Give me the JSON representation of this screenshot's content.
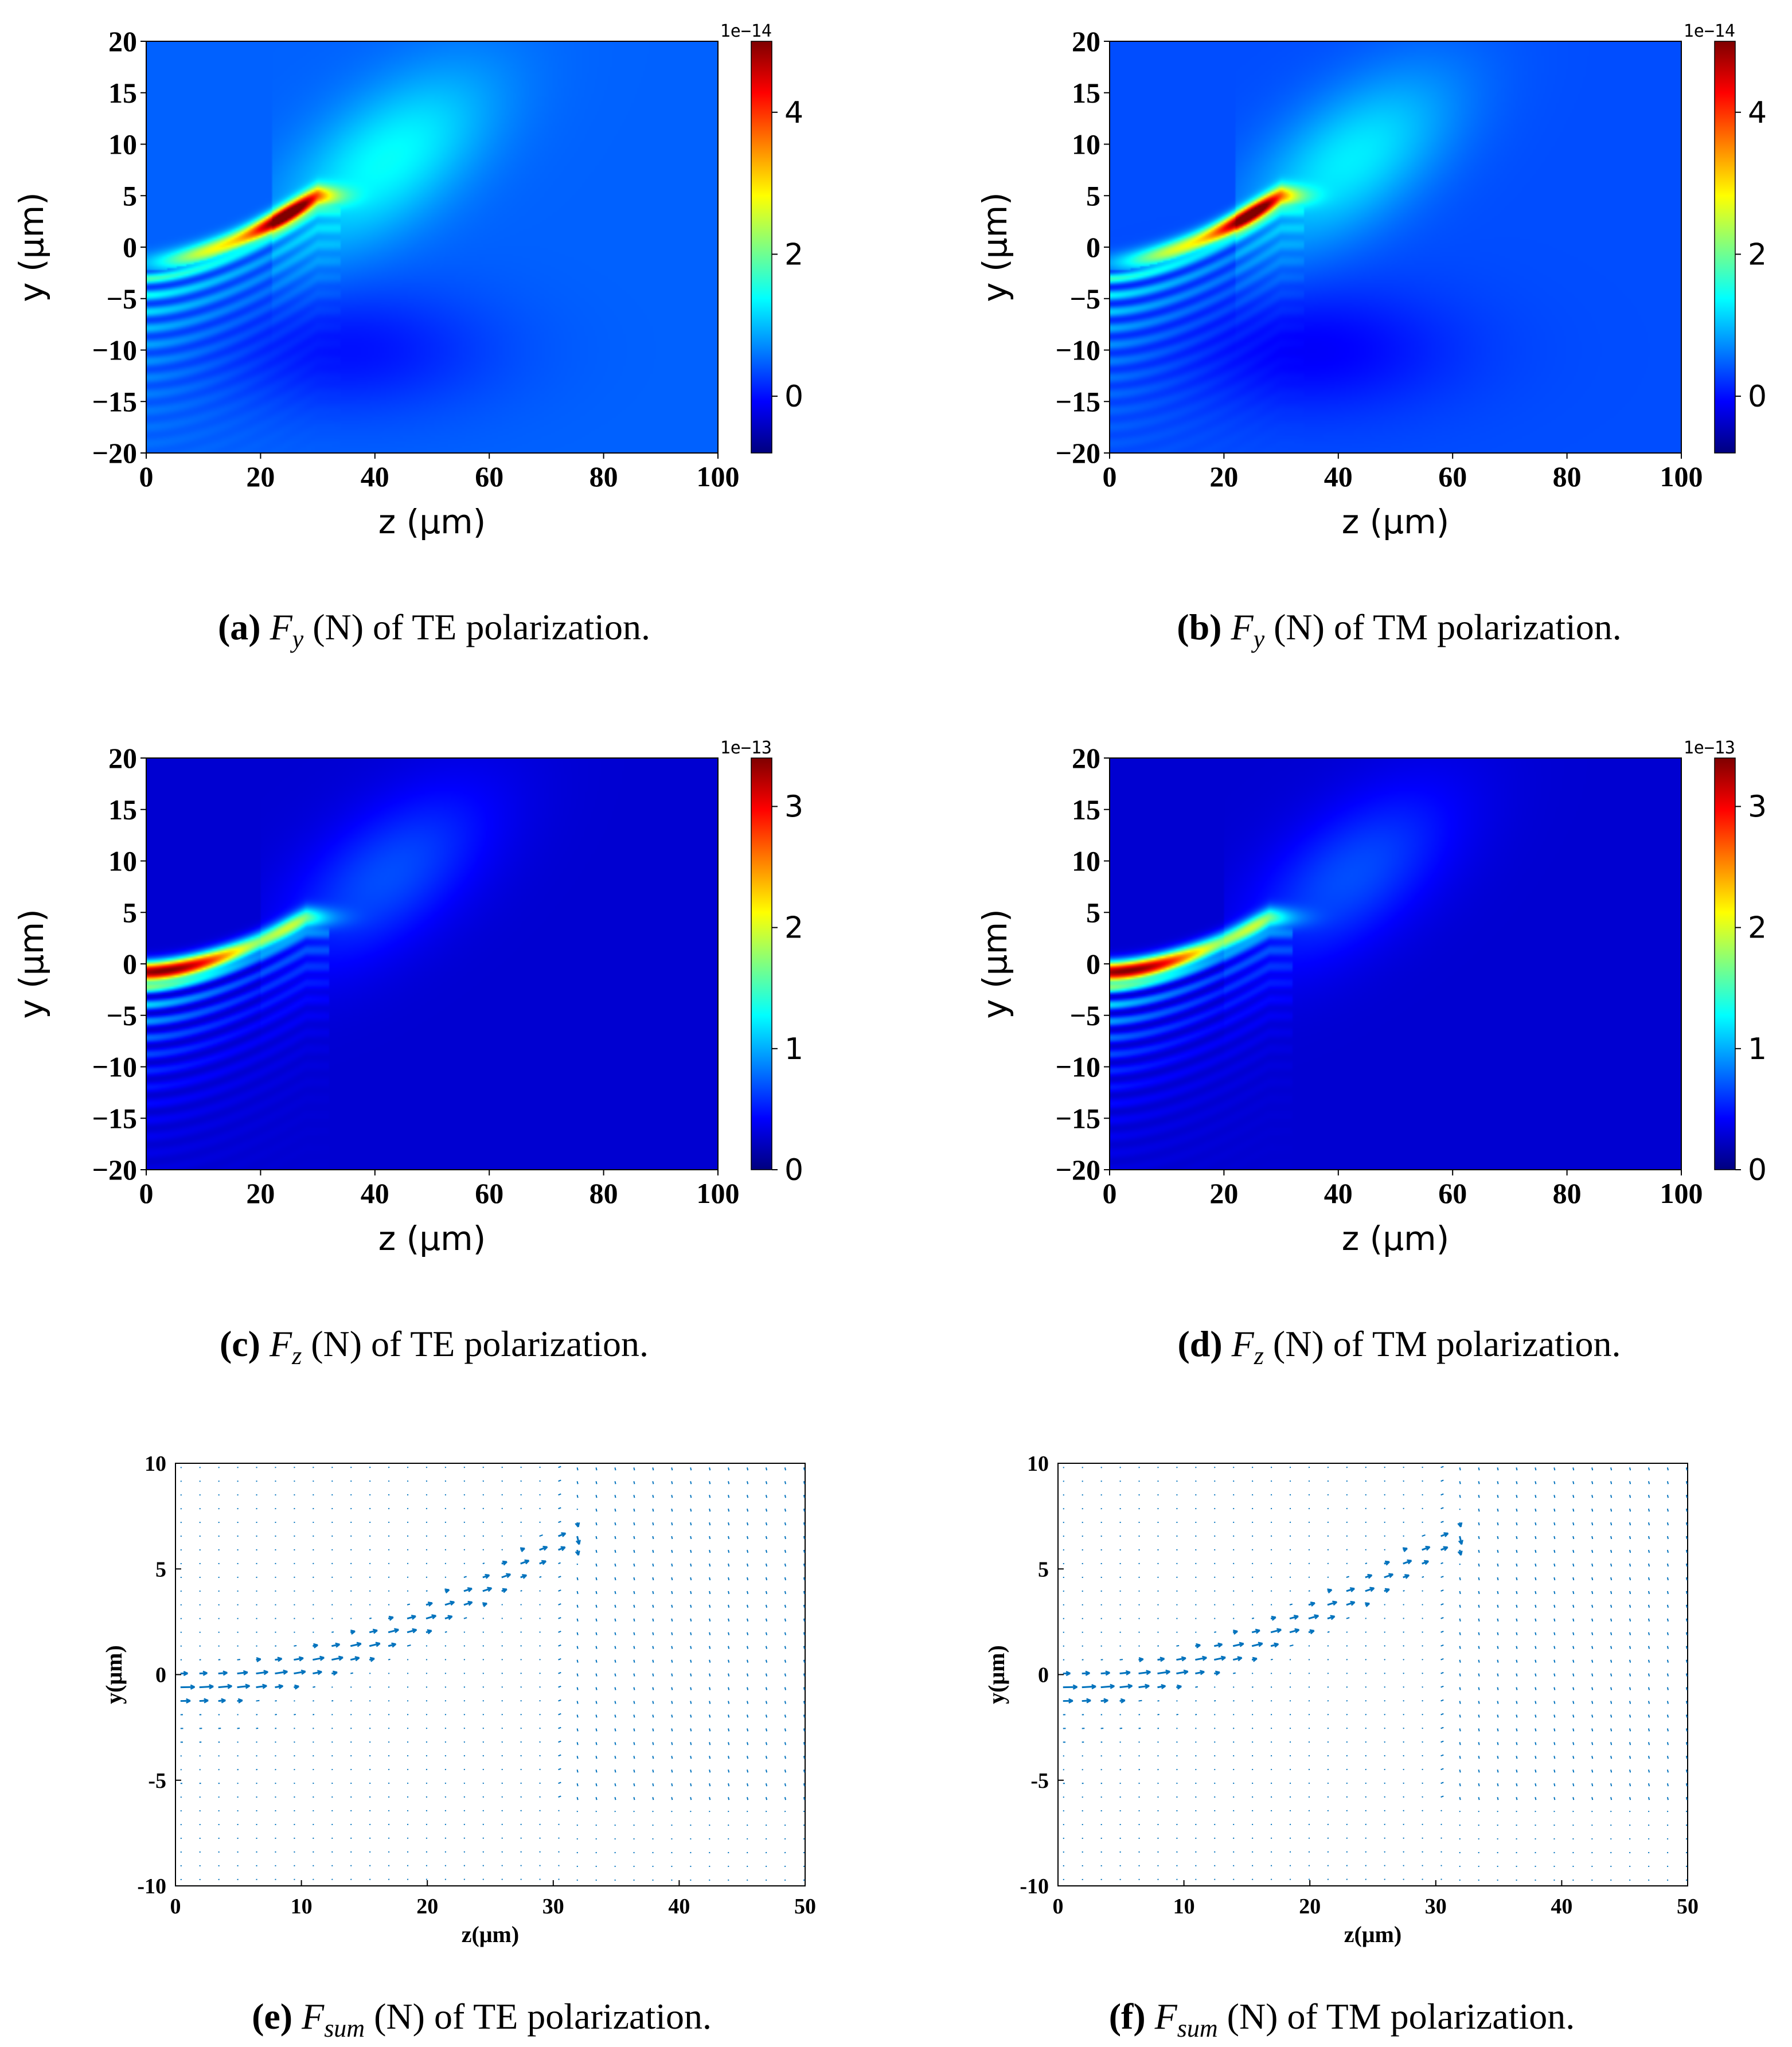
{
  "chart_data": [
    {
      "id": "a",
      "type": "heatmap",
      "caption": {
        "letter": "(a)",
        "quantity_main": "F",
        "quantity_sub": "y",
        "text": "(N) of TE polarization."
      },
      "xlabel": "z (μm)",
      "ylabel": "y (μm)",
      "xlim": [
        0,
        100
      ],
      "ylim": [
        -20,
        20
      ],
      "xticks": [
        "0",
        "20",
        "40",
        "60",
        "80",
        "100"
      ],
      "yticks": [
        "20",
        "15",
        "10",
        "5",
        "0",
        "−5",
        "−10",
        "−15",
        "−20"
      ],
      "colorbar": {
        "min": -0.8,
        "max": 5,
        "exponent": "1e−14",
        "ticks": [
          "0",
          "2",
          "4"
        ]
      },
      "colormap": [
        "#00007f",
        "#0000ff",
        "#0080ff",
        "#00ffff",
        "#80ff80",
        "#ffff00",
        "#ff8000",
        "#ff0000",
        "#7f0000"
      ],
      "background_level": 0.22,
      "beam": {
        "y0": -1.5,
        "z_focus": 30,
        "y_focus": 5,
        "peak_z": 25,
        "fringes": 7,
        "fringe_spacing": 1.6
      }
    },
    {
      "id": "b",
      "type": "heatmap",
      "caption": {
        "letter": "(b)",
        "quantity_main": "F",
        "quantity_sub": "y",
        "text": "(N) of TM polarization."
      },
      "xlabel": "z (μm)",
      "ylabel": "y (μm)",
      "xlim": [
        0,
        100
      ],
      "ylim": [
        -20,
        20
      ],
      "xticks": [
        "0",
        "20",
        "40",
        "60",
        "80",
        "100"
      ],
      "yticks": [
        "20",
        "15",
        "10",
        "5",
        "0",
        "−5",
        "−10",
        "−15",
        "−20"
      ],
      "colorbar": {
        "min": -0.8,
        "max": 5,
        "exponent": "1e−14",
        "ticks": [
          "0",
          "2",
          "4"
        ]
      },
      "colormap": [
        "#00007f",
        "#0000ff",
        "#0080ff",
        "#00ffff",
        "#80ff80",
        "#ffff00",
        "#ff8000",
        "#ff0000",
        "#7f0000"
      ],
      "background_level": 0.2,
      "beam": {
        "y0": -1.5,
        "z_focus": 30,
        "y_focus": 5,
        "peak_z": 25,
        "fringes": 8,
        "fringe_spacing": 1.6
      }
    },
    {
      "id": "c",
      "type": "heatmap",
      "caption": {
        "letter": "(c)",
        "quantity_main": "F",
        "quantity_sub": "z",
        "text": "(N) of TE polarization."
      },
      "xlabel": "z (μm)",
      "ylabel": "y (μm)",
      "xlim": [
        0,
        100
      ],
      "ylim": [
        -20,
        20
      ],
      "xticks": [
        "0",
        "20",
        "40",
        "60",
        "80",
        "100"
      ],
      "yticks": [
        "20",
        "15",
        "10",
        "5",
        "0",
        "−5",
        "−10",
        "−15",
        "−20"
      ],
      "colorbar": {
        "min": 0,
        "max": 3.4,
        "exponent": "1e−13",
        "ticks": [
          "0",
          "1",
          "2",
          "3"
        ]
      },
      "colormap": [
        "#00007f",
        "#0000ff",
        "#0080ff",
        "#00ffff",
        "#80ff80",
        "#ffff00",
        "#ff8000",
        "#ff0000",
        "#7f0000"
      ],
      "background_level": 0.08,
      "beam": {
        "y0": -0.8,
        "z_focus": 28,
        "y_focus": 4.5,
        "peak_z": 3,
        "fringes": 7,
        "fringe_spacing": 1.6
      }
    },
    {
      "id": "d",
      "type": "heatmap",
      "caption": {
        "letter": "(d)",
        "quantity_main": "F",
        "quantity_sub": "z",
        "text": "(N) of TM polarization."
      },
      "xlabel": "z (μm)",
      "ylabel": "y (μm)",
      "xlim": [
        0,
        100
      ],
      "ylim": [
        -20,
        20
      ],
      "xticks": [
        "0",
        "20",
        "40",
        "60",
        "80",
        "100"
      ],
      "yticks": [
        "20",
        "15",
        "10",
        "5",
        "0",
        "−5",
        "−10",
        "−15",
        "−20"
      ],
      "colorbar": {
        "min": 0,
        "max": 3.4,
        "exponent": "1e−13",
        "ticks": [
          "0",
          "1",
          "2",
          "3"
        ]
      },
      "colormap": [
        "#00007f",
        "#0000ff",
        "#0080ff",
        "#00ffff",
        "#80ff80",
        "#ffff00",
        "#ff8000",
        "#ff0000",
        "#7f0000"
      ],
      "background_level": 0.08,
      "beam": {
        "y0": -0.8,
        "z_focus": 28,
        "y_focus": 4.5,
        "peak_z": 3,
        "fringes": 7,
        "fringe_spacing": 1.6
      }
    },
    {
      "id": "e",
      "type": "quiver",
      "caption": {
        "letter": "(e)",
        "quantity_main": "F",
        "quantity_sub": "sum",
        "text": "(N) of TE polarization."
      },
      "xlabel": "z(μm)",
      "ylabel": "y(μm)",
      "xlim": [
        0,
        50
      ],
      "ylim": [
        -10,
        10
      ],
      "xticks": [
        "0",
        "10",
        "20",
        "30",
        "40",
        "50"
      ],
      "yticks": [
        "10",
        "5",
        "0",
        "-5",
        "-10"
      ],
      "arrow_color": "#0072bd",
      "grid": {
        "dz": 1.5,
        "dy": 0.65
      },
      "beam": {
        "y0": -0.7,
        "z_focus": 31,
        "y_focus": 6.5
      }
    },
    {
      "id": "f",
      "type": "quiver",
      "caption": {
        "letter": "(f)",
        "quantity_main": "F",
        "quantity_sub": "sum",
        "text": "(N) of TM polarization."
      },
      "xlabel": "z(μm)",
      "ylabel": "y(μm)",
      "xlim": [
        0,
        50
      ],
      "ylim": [
        -10,
        10
      ],
      "xticks": [
        "0",
        "10",
        "20",
        "30",
        "40",
        "50"
      ],
      "yticks": [
        "10",
        "5",
        "0",
        "-5",
        "-10"
      ],
      "arrow_color": "#0072bd",
      "grid": {
        "dz": 1.5,
        "dy": 0.65
      },
      "beam": {
        "y0": -0.7,
        "z_focus": 31,
        "y_focus": 6.5
      }
    }
  ]
}
